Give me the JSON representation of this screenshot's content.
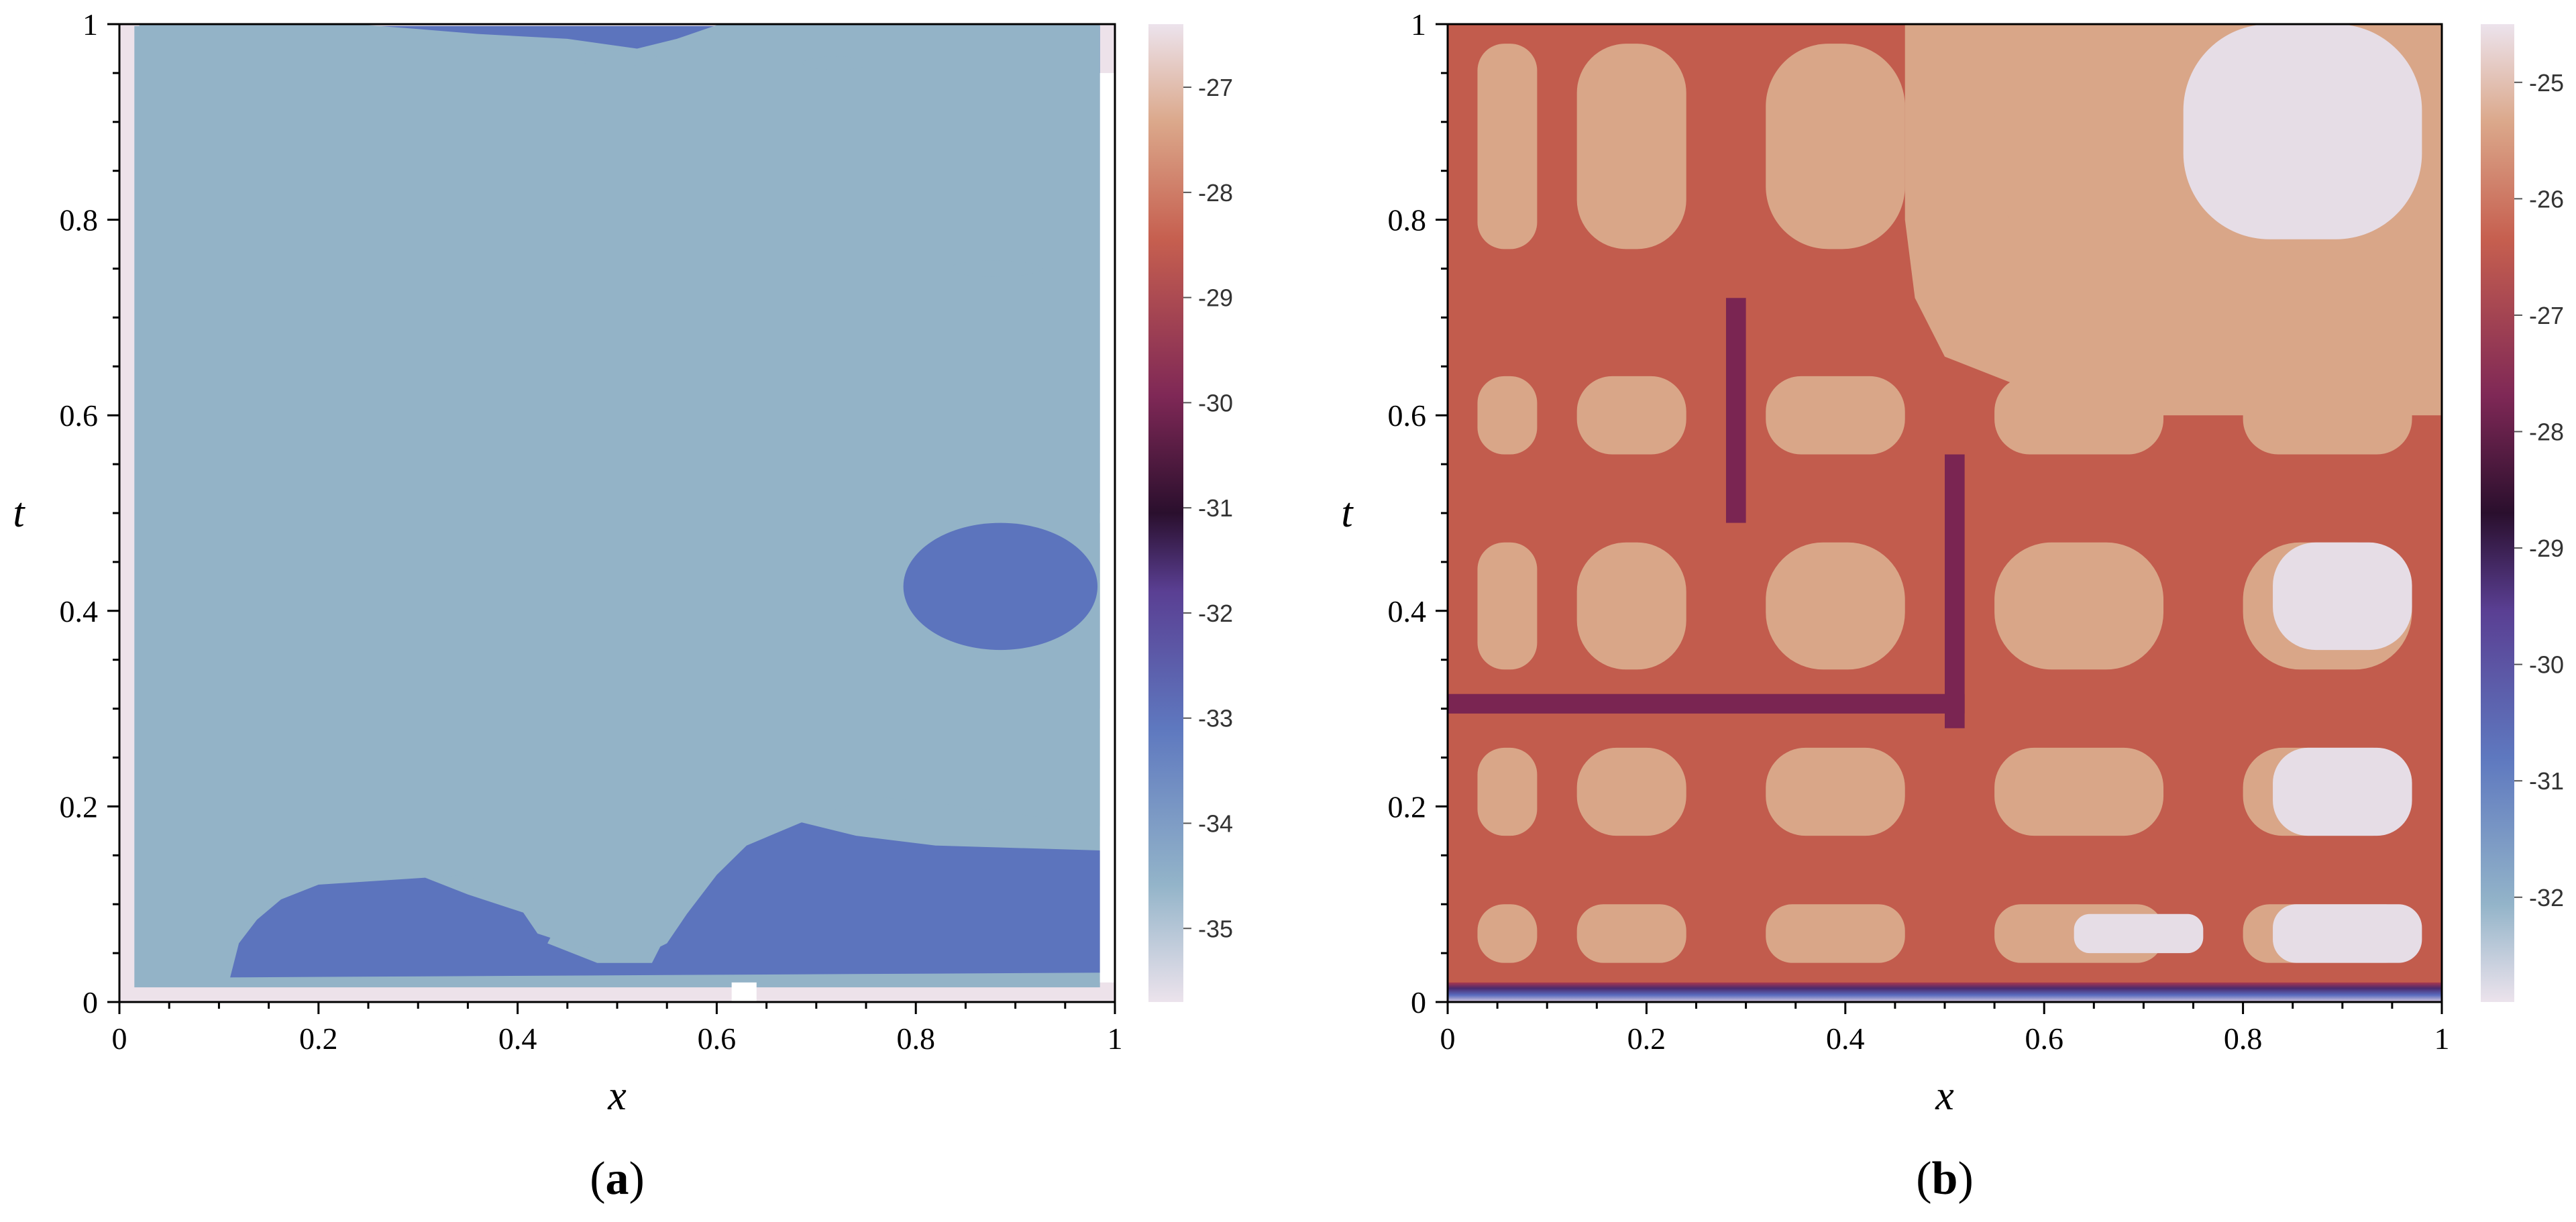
{
  "chart_data": [
    {
      "type": "contour",
      "panel_label": "a",
      "xlabel": "x",
      "ylabel": "t",
      "xlim": [
        0,
        1
      ],
      "ylim": [
        0,
        1
      ],
      "x_ticks": [
        "0",
        "0.2",
        "0.4",
        "0.6",
        "0.8",
        "1"
      ],
      "y_ticks": [
        "0",
        "0.2",
        "0.4",
        "0.6",
        "0.8",
        "1"
      ],
      "colorbar_ticks": [
        "-27",
        "-28",
        "-29",
        "-30",
        "-31",
        "-32",
        "-33",
        "-34",
        "-35"
      ],
      "colorbar_range": [
        -35.7,
        -26.4
      ],
      "grid": false,
      "colors": {
        "background_level": "#93b3c7",
        "main_level": "#5c74bd",
        "edge": "#ede2ea"
      },
      "regions": [
        {
          "level": -34.5,
          "outline": [
            [
              0.015,
              0.998
            ],
            [
              0.985,
              0.998
            ],
            [
              0.985,
              0.015
            ],
            [
              0.015,
              0.015
            ]
          ]
        },
        {
          "level": -33.2,
          "outline": [
            [
              0.255,
              0.998
            ],
            [
              0.985,
              0.998
            ],
            [
              0.985,
              0.03
            ],
            [
              0.09,
              0.025
            ],
            [
              0.11,
              0.06
            ],
            [
              0.18,
              0.12
            ],
            [
              0.3,
              0.13
            ],
            [
              0.35,
              0.11
            ],
            [
              0.41,
              0.09
            ],
            [
              0.44,
              0.08
            ],
            [
              0.43,
              0.06
            ],
            [
              0.48,
              0.04
            ],
            [
              0.535,
              0.04
            ],
            [
              0.545,
              0.06
            ],
            [
              0.56,
              0.1
            ],
            [
              0.61,
              0.16
            ],
            [
              0.68,
              0.185
            ],
            [
              0.74,
              0.17
            ],
            [
              0.82,
              0.16
            ],
            [
              0.985,
              0.155
            ],
            [
              0.985,
              0.3
            ],
            [
              0.8,
              0.3
            ],
            [
              0.7,
              0.31
            ],
            [
              0.65,
              0.38
            ],
            [
              0.68,
              0.44
            ],
            [
              0.76,
              0.46
            ],
            [
              0.87,
              0.48
            ],
            [
              0.985,
              0.49
            ],
            [
              0.985,
              0.5
            ],
            [
              0.82,
              0.52
            ],
            [
              0.7,
              0.525
            ],
            [
              0.62,
              0.5
            ],
            [
              0.57,
              0.48
            ],
            [
              0.52,
              0.47
            ],
            [
              0.5,
              0.44
            ],
            [
              0.48,
              0.39
            ],
            [
              0.44,
              0.38
            ],
            [
              0.38,
              0.38
            ],
            [
              0.34,
              0.37
            ],
            [
              0.3,
              0.35
            ],
            [
              0.25,
              0.3
            ],
            [
              0.2,
              0.27
            ],
            [
              0.15,
              0.25
            ],
            [
              0.11,
              0.36
            ],
            [
              0.08,
              0.5
            ],
            [
              0.075,
              0.6
            ],
            [
              0.1,
              0.67
            ],
            [
              0.15,
              0.72
            ],
            [
              0.22,
              0.77
            ],
            [
              0.3,
              0.8
            ],
            [
              0.38,
              0.83
            ],
            [
              0.42,
              0.85
            ],
            [
              0.35,
              0.88
            ],
            [
              0.3,
              0.9
            ],
            [
              0.255,
              0.94
            ]
          ]
        },
        {
          "level": -34.5,
          "outline": [
            [
              0.985,
              0.999
            ],
            [
              0.6,
              0.999
            ],
            [
              0.56,
              0.985
            ],
            [
              0.52,
              0.975
            ],
            [
              0.45,
              0.985
            ],
            [
              0.36,
              0.99
            ],
            [
              0.3,
              0.995
            ],
            [
              0.25,
              0.999
            ],
            [
              0.02,
              0.999
            ],
            [
              0.02,
              0.02
            ],
            [
              0.11,
              0.02
            ],
            [
              0.12,
              0.06
            ],
            [
              0.15,
              0.1
            ],
            [
              0.2,
              0.12
            ],
            [
              0.35,
              0.13
            ],
            [
              0.4,
              0.1
            ],
            [
              0.42,
              0.07
            ],
            [
              0.45,
              0.06
            ],
            [
              0.5,
              0.05
            ],
            [
              0.53,
              0.05
            ],
            [
              0.55,
              0.06
            ],
            [
              0.57,
              0.09
            ],
            [
              0.6,
              0.13
            ],
            [
              0.63,
              0.16
            ],
            [
              0.7,
              0.19
            ],
            [
              0.76,
              0.21
            ],
            [
              0.85,
              0.2
            ],
            [
              0.985,
              0.18
            ]
          ]
        }
      ]
    },
    {
      "type": "contour",
      "panel_label": "b",
      "xlabel": "x",
      "ylabel": "t",
      "xlim": [
        0,
        1
      ],
      "ylim": [
        0,
        1
      ],
      "x_ticks": [
        "0",
        "0.2",
        "0.4",
        "0.6",
        "0.8",
        "1"
      ],
      "y_ticks": [
        "0",
        "0.2",
        "0.4",
        "0.6",
        "0.8",
        "1"
      ],
      "colorbar_ticks": [
        "-25",
        "-26",
        "-27",
        "-28",
        "-29",
        "-30",
        "-31",
        "-32"
      ],
      "colorbar_range": [
        -32.9,
        -24.5
      ],
      "grid": false,
      "colors": {
        "high_level": "#d9a688",
        "mid_level": "#c25c4d",
        "low_level": "#7a2552",
        "top_level": "#e6dde6"
      },
      "cells_x": [
        [
          0.03,
          0.09
        ],
        [
          0.13,
          0.24
        ],
        [
          0.32,
          0.46
        ],
        [
          0.55,
          0.72
        ],
        [
          0.8,
          0.97
        ]
      ],
      "cells_y": [
        [
          0.04,
          0.1
        ],
        [
          0.17,
          0.26
        ],
        [
          0.34,
          0.47
        ],
        [
          0.56,
          0.64
        ],
        [
          0.77,
          0.98
        ]
      ]
    }
  ]
}
